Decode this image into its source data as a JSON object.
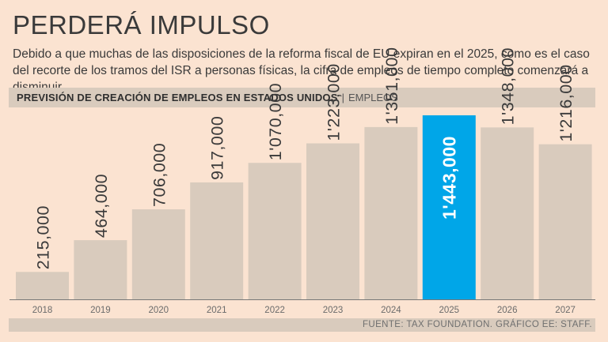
{
  "header": {
    "title": "PERDERÁ IMPULSO",
    "subtitle": "Debido a que muchas de las disposiciones de la reforma fiscal de EU expiran en el 2025, como es el caso del recorte de los tramos del ISR a personas físicas, la cifra de empleos de tiempo completo comenzará a disminuir."
  },
  "chart_header": {
    "title": "PREVISIÓN DE CREACIÓN DE EMPLEOS EN ESTADOS UNIDOS",
    "separator": "|",
    "unit": "EMPLEOS"
  },
  "footer": {
    "source": "FUENTE: TAX FOUNDATION. GRÁFICO EE: STAFF."
  },
  "colors": {
    "bar": "#d9cbbd",
    "highlight": "#00a6e8",
    "label": "#3a3a3a",
    "highlight_label": "#ffffff",
    "axis": "#777777"
  },
  "chart_data": {
    "type": "bar",
    "title": "PREVISIÓN DE CREACIÓN DE EMPLEOS EN ESTADOS UNIDOS",
    "ylabel": "EMPLEOS",
    "xlabel": "",
    "categories": [
      "2018",
      "2019",
      "2020",
      "2021",
      "2022",
      "2023",
      "2024",
      "2025",
      "2026",
      "2027"
    ],
    "values": [
      215000,
      464000,
      706000,
      917000,
      1070000,
      1223000,
      1351000,
      1443000,
      1348000,
      1216000
    ],
    "data_labels": [
      "215,000",
      "464,000",
      "706,000",
      "917,000",
      "1'070,000",
      "1'223,000",
      "1'351,000",
      "1'443,000",
      "1'348,000",
      "1'216,000"
    ],
    "highlight_category": "2025",
    "ylim": [
      0,
      1443000
    ],
    "grid": false,
    "legend": "none"
  }
}
